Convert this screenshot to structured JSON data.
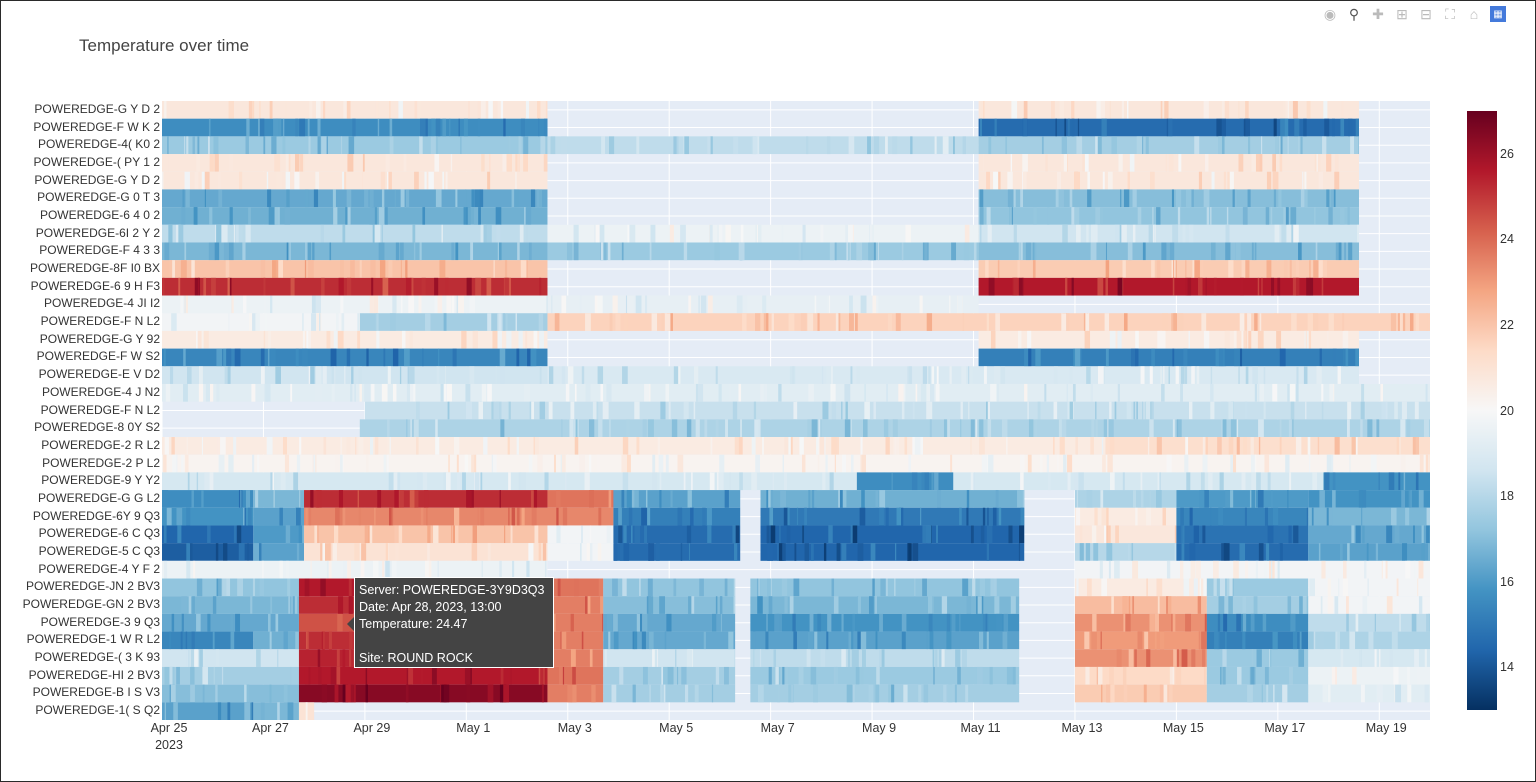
{
  "chart_data": {
    "type": "heatmap",
    "title": "Temperature over time",
    "rows": [
      "POWEREDGE-G  Y  D 2",
      "POWEREDGE-F  W  K 2",
      "POWEREDGE-4(  K0  2",
      "POWEREDGE-(  PY  1 2",
      "POWEREDGE-G  Y  D 2",
      "POWEREDGE-G  0  T 3",
      "POWEREDGE-6  4  0 2",
      "POWEREDGE-6I  2  Y 2",
      "POWEREDGE-F  4  3 3",
      "POWEREDGE-8F  I0  BX",
      "POWEREDGE-6  9  H F3",
      "POWEREDGE-4  JI  I2",
      "POWEREDGE-F  N  L2",
      "POWEREDGE-G  Y  92",
      "POWEREDGE-F  W  S2",
      "POWEREDGE-E  V  D2",
      "POWEREDGE-4  J  N2",
      "POWEREDGE-F  N  L2",
      "POWEREDGE-8  0Y  S2",
      "POWEREDGE-2  R  L2",
      "POWEREDGE-2  P  L2",
      "POWEREDGE-9  Y  Y2",
      "POWEREDGE-G  G  L2",
      "POWEREDGE-6Y  9  Q3",
      "POWEREDGE-6  C  Q3",
      "POWEREDGE-5  C  Q3",
      "POWEREDGE-4  Y  F 2",
      "POWEREDGE-JN  2  BV3",
      "POWEREDGE-GN  2  BV3",
      "POWEREDGE-3  9  Q3",
      "POWEREDGE-1  W  R L2",
      "POWEREDGE-(  3  K 93",
      "POWEREDGE-HI  2  BV3",
      "POWEREDGE-B  I  S V3",
      "POWEREDGE-1(  S  Q2"
    ],
    "x_range": [
      "2023-04-25",
      "2023-05-20"
    ],
    "x_ticks": [
      "Apr 25",
      "Apr 27",
      "Apr 29",
      "May 1",
      "May 3",
      "May 5",
      "May 7",
      "May 9",
      "May 11",
      "May 13",
      "May 15",
      "May 17",
      "May 19"
    ],
    "x_year_label": "2023",
    "colorscale": "RdBu (reversed)",
    "z_range": [
      13,
      27
    ],
    "colorbar_ticks": [
      14,
      16,
      18,
      20,
      22,
      24,
      26
    ],
    "row_segments": [
      [
        [
          0,
          7.6,
          20.8
        ],
        [
          16.1,
          23.6,
          20.8
        ]
      ],
      [
        [
          0,
          7.6,
          15.6
        ],
        [
          16.1,
          23.6,
          14.6
        ]
      ],
      [
        [
          0,
          7.6,
          17.4
        ],
        [
          7.6,
          16.1,
          18.2
        ],
        [
          16.1,
          23.6,
          17.6
        ]
      ],
      [
        [
          0,
          7.6,
          20.8
        ],
        [
          16.1,
          23.6,
          20.8
        ]
      ],
      [
        [
          0,
          7.6,
          20.8
        ],
        [
          16.1,
          23.6,
          20.8
        ]
      ],
      [
        [
          0,
          7.6,
          16.4
        ],
        [
          16.1,
          23.6,
          17.0
        ]
      ],
      [
        [
          0,
          7.6,
          16.6
        ],
        [
          16.1,
          23.6,
          17.2
        ]
      ],
      [
        [
          0,
          7.6,
          18.2
        ],
        [
          7.6,
          16.1,
          19.6
        ],
        [
          16.1,
          23.6,
          18.6
        ]
      ],
      [
        [
          0,
          7.6,
          16.8
        ],
        [
          7.6,
          16.1,
          17.4
        ],
        [
          16.1,
          23.6,
          17.0
        ]
      ],
      [
        [
          0,
          7.6,
          22.0
        ],
        [
          16.1,
          23.6,
          21.8
        ]
      ],
      [
        [
          0,
          7.6,
          25.2
        ],
        [
          16.1,
          23.6,
          25.6
        ]
      ],
      [
        [
          0,
          7.6,
          19.6
        ],
        [
          7.6,
          16.1,
          19.4
        ]
      ],
      [
        [
          0,
          3.9,
          19.8
        ],
        [
          3.9,
          7.6,
          17.6
        ],
        [
          7.6,
          25.0,
          21.6
        ]
      ],
      [
        [
          0,
          7.6,
          20.6
        ],
        [
          16.1,
          23.6,
          20.6
        ]
      ],
      [
        [
          0,
          7.6,
          15.4
        ],
        [
          16.1,
          23.6,
          15.2
        ]
      ],
      [
        [
          0,
          7.6,
          18.6
        ],
        [
          7.6,
          23.6,
          18.9
        ]
      ],
      [
        [
          0,
          25.0,
          19.2
        ]
      ],
      [
        [
          4.0,
          25.0,
          18.4
        ]
      ],
      [
        [
          3.9,
          25.0,
          17.8
        ]
      ],
      [
        [
          0,
          18.6,
          20.6
        ],
        [
          18.6,
          25.0,
          21.2
        ]
      ],
      [
        [
          0,
          25.0,
          20.2
        ]
      ],
      [
        [
          0,
          25.0,
          18.8
        ],
        [
          13.7,
          15.6,
          15.6
        ],
        [
          22.9,
          25.0,
          15.8
        ]
      ],
      [
        [
          0,
          1.8,
          15.6
        ],
        [
          1.8,
          2.8,
          16.8
        ],
        [
          2.8,
          7.6,
          25.2
        ],
        [
          7.6,
          8.9,
          23.8
        ],
        [
          8.9,
          11.4,
          16.2
        ],
        [
          11.8,
          17.0,
          16.6
        ],
        [
          18.0,
          20.0,
          17.8
        ],
        [
          20.0,
          22.6,
          16.0
        ],
        [
          22.6,
          25.0,
          15.8
        ]
      ],
      [
        [
          0,
          1.8,
          15.8
        ],
        [
          1.8,
          2.8,
          16.2
        ],
        [
          2.8,
          8.9,
          23.4
        ],
        [
          8.9,
          11.4,
          15.2
        ],
        [
          11.8,
          17.0,
          15.0
        ],
        [
          18.0,
          20.0,
          20.6
        ],
        [
          20.0,
          22.6,
          15.4
        ],
        [
          22.6,
          25.0,
          16.8
        ]
      ],
      [
        [
          0,
          1.8,
          14.4
        ],
        [
          1.8,
          2.8,
          16.0
        ],
        [
          2.8,
          7.6,
          22.0
        ],
        [
          7.6,
          8.9,
          19.8
        ],
        [
          8.9,
          11.4,
          14.6
        ],
        [
          11.8,
          17.0,
          14.4
        ],
        [
          18.0,
          20.0,
          20.8
        ],
        [
          20.0,
          22.6,
          14.8
        ],
        [
          22.6,
          25.0,
          16.4
        ]
      ],
      [
        [
          0,
          1.8,
          14.2
        ],
        [
          1.8,
          2.8,
          16.2
        ],
        [
          2.8,
          7.6,
          21.0
        ],
        [
          7.6,
          8.9,
          19.8
        ],
        [
          8.9,
          11.4,
          14.6
        ],
        [
          11.8,
          17.0,
          14.4
        ],
        [
          18.0,
          20.0,
          18.0
        ],
        [
          20.0,
          22.6,
          14.6
        ],
        [
          22.6,
          25.0,
          16.2
        ]
      ],
      [
        [
          0,
          7.6,
          19.6
        ],
        [
          18.0,
          25.0,
          19.8
        ]
      ],
      [
        [
          0,
          2.7,
          17.2
        ],
        [
          2.7,
          7.6,
          25.6
        ],
        [
          7.6,
          8.7,
          23.8
        ],
        [
          8.7,
          11.3,
          17.2
        ],
        [
          11.6,
          16.9,
          17.2
        ],
        [
          18.0,
          20.6,
          20.6
        ],
        [
          20.6,
          22.6,
          17.4
        ],
        [
          22.6,
          25.0,
          19.8
        ]
      ],
      [
        [
          0,
          2.7,
          16.8
        ],
        [
          2.7,
          7.6,
          25.2
        ],
        [
          7.6,
          8.7,
          23.6
        ],
        [
          8.7,
          11.3,
          17.0
        ],
        [
          11.6,
          16.9,
          16.8
        ],
        [
          18.0,
          20.6,
          22.2
        ],
        [
          20.6,
          22.6,
          17.6
        ],
        [
          22.6,
          25.0,
          19.8
        ]
      ],
      [
        [
          0,
          2.7,
          16.4
        ],
        [
          2.7,
          7.6,
          24.47
        ],
        [
          7.6,
          8.7,
          23.6
        ],
        [
          8.7,
          11.3,
          16.4
        ],
        [
          11.6,
          16.9,
          15.8
        ],
        [
          18.0,
          20.6,
          23.2
        ],
        [
          20.6,
          22.6,
          15.6
        ],
        [
          22.6,
          25.0,
          18.2
        ]
      ],
      [
        [
          0,
          1.8,
          15.4
        ],
        [
          1.8,
          2.7,
          16.6
        ],
        [
          2.7,
          7.6,
          25.2
        ],
        [
          7.6,
          8.7,
          23.6
        ],
        [
          8.7,
          11.3,
          16.4
        ],
        [
          11.6,
          16.9,
          16.2
        ],
        [
          18.0,
          20.6,
          23.0
        ],
        [
          20.6,
          22.6,
          15.2
        ],
        [
          22.6,
          25.0,
          17.8
        ]
      ],
      [
        [
          0,
          2.7,
          18.6
        ],
        [
          2.7,
          7.6,
          25.4
        ],
        [
          7.6,
          8.7,
          23.6
        ],
        [
          8.7,
          11.3,
          18.6
        ],
        [
          11.6,
          16.9,
          18.2
        ],
        [
          18.0,
          20.6,
          23.2
        ],
        [
          20.6,
          22.6,
          17.4
        ],
        [
          22.6,
          25.0,
          18.8
        ]
      ],
      [
        [
          0,
          2.7,
          17.6
        ],
        [
          2.7,
          7.6,
          25.6
        ],
        [
          7.6,
          8.7,
          23.8
        ],
        [
          8.7,
          11.3,
          17.6
        ],
        [
          11.6,
          16.9,
          17.4
        ],
        [
          18.0,
          20.6,
          21.4
        ],
        [
          20.6,
          22.6,
          17.4
        ],
        [
          22.6,
          25.0,
          19.6
        ]
      ],
      [
        [
          0,
          2.7,
          17.0
        ],
        [
          2.7,
          7.6,
          26.4
        ],
        [
          7.6,
          8.7,
          23.6
        ],
        [
          8.7,
          11.3,
          17.6
        ],
        [
          11.6,
          16.9,
          17.6
        ],
        [
          18.0,
          20.6,
          21.8
        ],
        [
          20.6,
          22.6,
          17.6
        ],
        [
          22.6,
          25.0,
          19.2
        ]
      ],
      [
        [
          0,
          1.8,
          16.2
        ],
        [
          1.8,
          2.7,
          16.8
        ],
        [
          2.7,
          3.0,
          21.0
        ]
      ]
    ]
  },
  "tooltip": {
    "server": "Server: POWEREDGE-3Y9D3Q3",
    "date": "Date: Apr 28, 2023, 13:00",
    "temperature": "Temperature: 24.47",
    "site": "Site: ROUND ROCK"
  },
  "modebar": {
    "icons": [
      "camera-icon",
      "zoom-icon",
      "pan-icon",
      "zoom-in-icon",
      "zoom-out-icon",
      "autoscale-icon",
      "home-icon",
      "plotly-logo-icon"
    ]
  }
}
